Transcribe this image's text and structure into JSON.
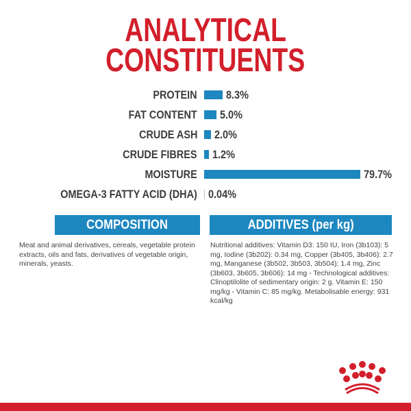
{
  "title": {
    "line1": "ANALYTICAL",
    "line2": "CONSTITUENTS"
  },
  "colors": {
    "title": "#d21f2b",
    "bars": "#1d87c0",
    "brand_red": "#d21f2b"
  },
  "chart_data": {
    "type": "bar",
    "orientation": "horizontal",
    "categories": [
      "PROTEIN",
      "FAT CONTENT",
      "CRUDE ASH",
      "CRUDE FIBRES",
      "MOISTURE",
      "OMEGA-3 FATTY ACID (DHA)"
    ],
    "values": [
      8.3,
      5.0,
      2.0,
      1.2,
      79.7,
      0.04
    ],
    "labels": [
      "8.3%",
      "5.0%",
      "2.0%",
      "1.2%",
      "79.7%",
      "0.04%"
    ],
    "grid": false
  },
  "composition": {
    "header": "COMPOSITION",
    "text": "Meat and animal derivatives, cereals, vegetable protein extracts, oils and fats, derivatives of vegetable origin, minerals, yeasts."
  },
  "additives": {
    "header": "ADDITIVES (per kg)",
    "text": "Nutritional additives: Vitamin D3: 150 IU, Iron (3b103): 5 mg, Iodine (3b202): 0.34 mg, Copper (3b405, 3b406): 2.7 mg, Manganese (3b502, 3b503, 3b504): 1.4 mg, Zinc (3b603, 3b605, 3b606): 14 mg - Technological additives: Clinoptilolite of sedimentary origin: 2 g. Vitamin E: 150 mg/kg - Vitamin C: 85 mg/kg. Metabolisable energy: 931 kcal/kg"
  },
  "logo": {
    "icon": "crown-icon"
  }
}
